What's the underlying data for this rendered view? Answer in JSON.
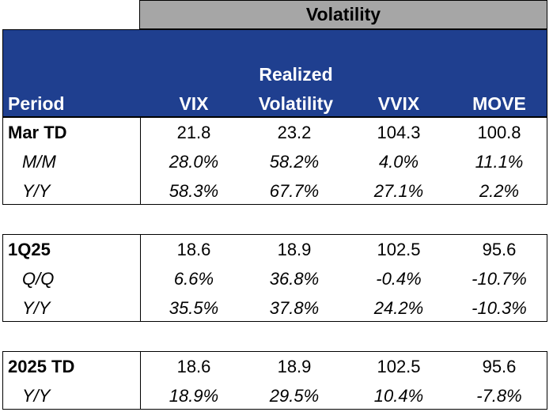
{
  "header": {
    "group_title": "Volatility",
    "columns": {
      "period": "Period",
      "vix": "VIX",
      "realized_line1": "Realized",
      "realized_line2": "Volatility",
      "vvix": "VVIX",
      "move": "MOVE"
    }
  },
  "sections": [
    {
      "rows": [
        {
          "label": "Mar TD",
          "values": [
            "21.8",
            "23.2",
            "104.3",
            "100.8"
          ]
        },
        {
          "label": "M/M",
          "values": [
            "28.0%",
            "58.2%",
            "4.0%",
            "11.1%"
          ]
        },
        {
          "label": "Y/Y",
          "values": [
            "58.3%",
            "67.7%",
            "27.1%",
            "2.2%"
          ]
        }
      ]
    },
    {
      "rows": [
        {
          "label": "1Q25",
          "values": [
            "18.6",
            "18.9",
            "102.5",
            "95.6"
          ]
        },
        {
          "label": "Q/Q",
          "values": [
            "6.6%",
            "36.8%",
            "-0.4%",
            "-10.7%"
          ]
        },
        {
          "label": "Y/Y",
          "values": [
            "35.5%",
            "37.8%",
            "24.2%",
            "-10.3%"
          ]
        }
      ]
    },
    {
      "rows": [
        {
          "label": "2025 TD",
          "values": [
            "18.6",
            "18.9",
            "102.5",
            "95.6"
          ]
        },
        {
          "label": "Y/Y",
          "values": [
            "18.9%",
            "29.5%",
            "10.4%",
            "-7.8%"
          ]
        }
      ]
    }
  ]
}
